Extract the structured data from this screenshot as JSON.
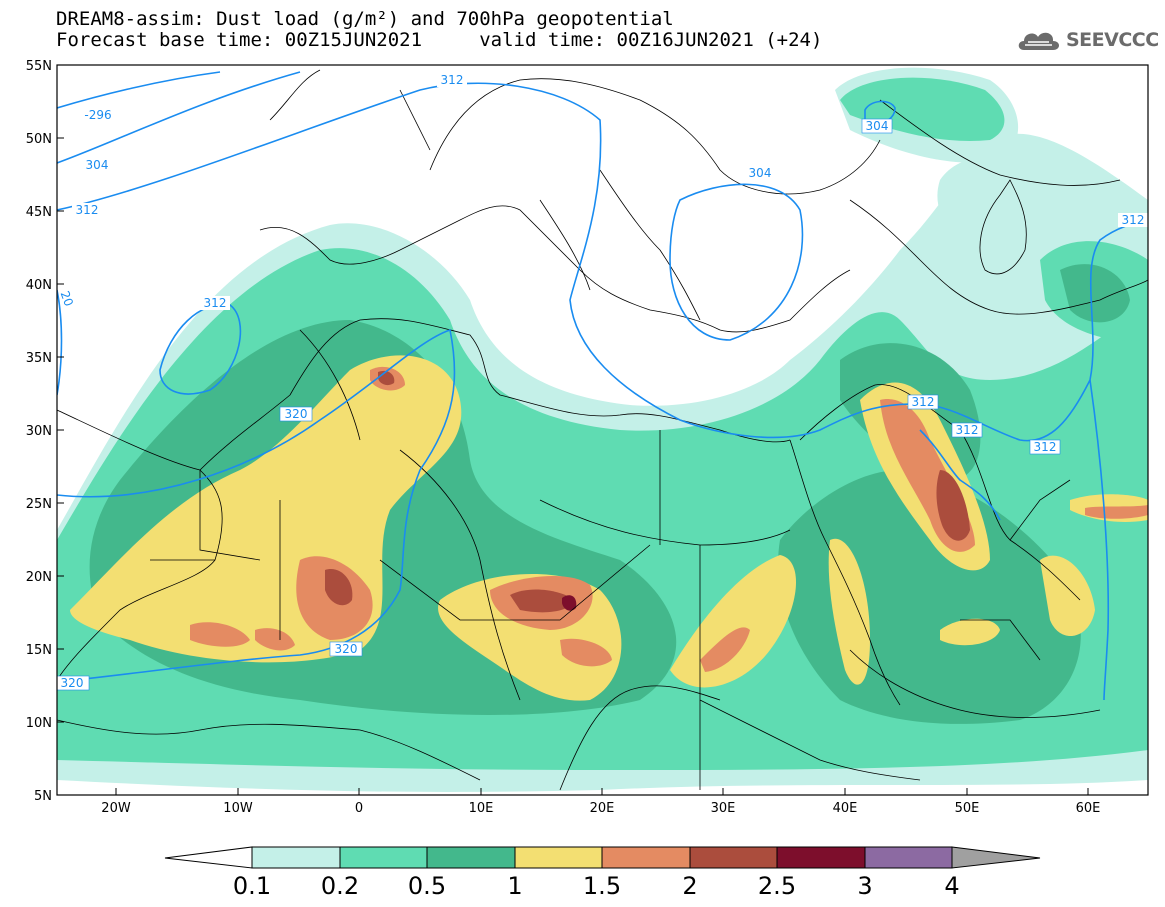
{
  "title_line1": "DREAM8-assim: Dust load (g/m²) and 700hPa geopotential",
  "title_line2": "Forecast base time: 00Z15JUN2021     valid time: 00Z16JUN2021 (+24)",
  "logo_text": "SEEVCCC",
  "axes": {
    "lat_labels": [
      "55N",
      "50N",
      "45N",
      "40N",
      "35N",
      "30N",
      "25N",
      "20N",
      "15N",
      "10N",
      "5N"
    ],
    "lon_labels": [
      "20W",
      "10W",
      "0",
      "10E",
      "20E",
      "30E",
      "40E",
      "50E",
      "60E"
    ]
  },
  "contour_labels": [
    "-296",
    "304",
    "312",
    "312",
    "312",
    "320",
    "320",
    "320",
    "304",
    "304",
    "312",
    "312",
    "312",
    "312",
    "20"
  ],
  "colorbar": {
    "labels": [
      "0.1",
      "0.2",
      "0.5",
      "1",
      "1.5",
      "2",
      "2.5",
      "3",
      "4"
    ],
    "colors": [
      "#c4f0e8",
      "#5fdcb2",
      "#43b88c",
      "#f3df72",
      "#e48b62",
      "#ab4d3d",
      "#7d0e2c",
      "#8c6aa2",
      "#a0a0a0"
    ]
  }
}
